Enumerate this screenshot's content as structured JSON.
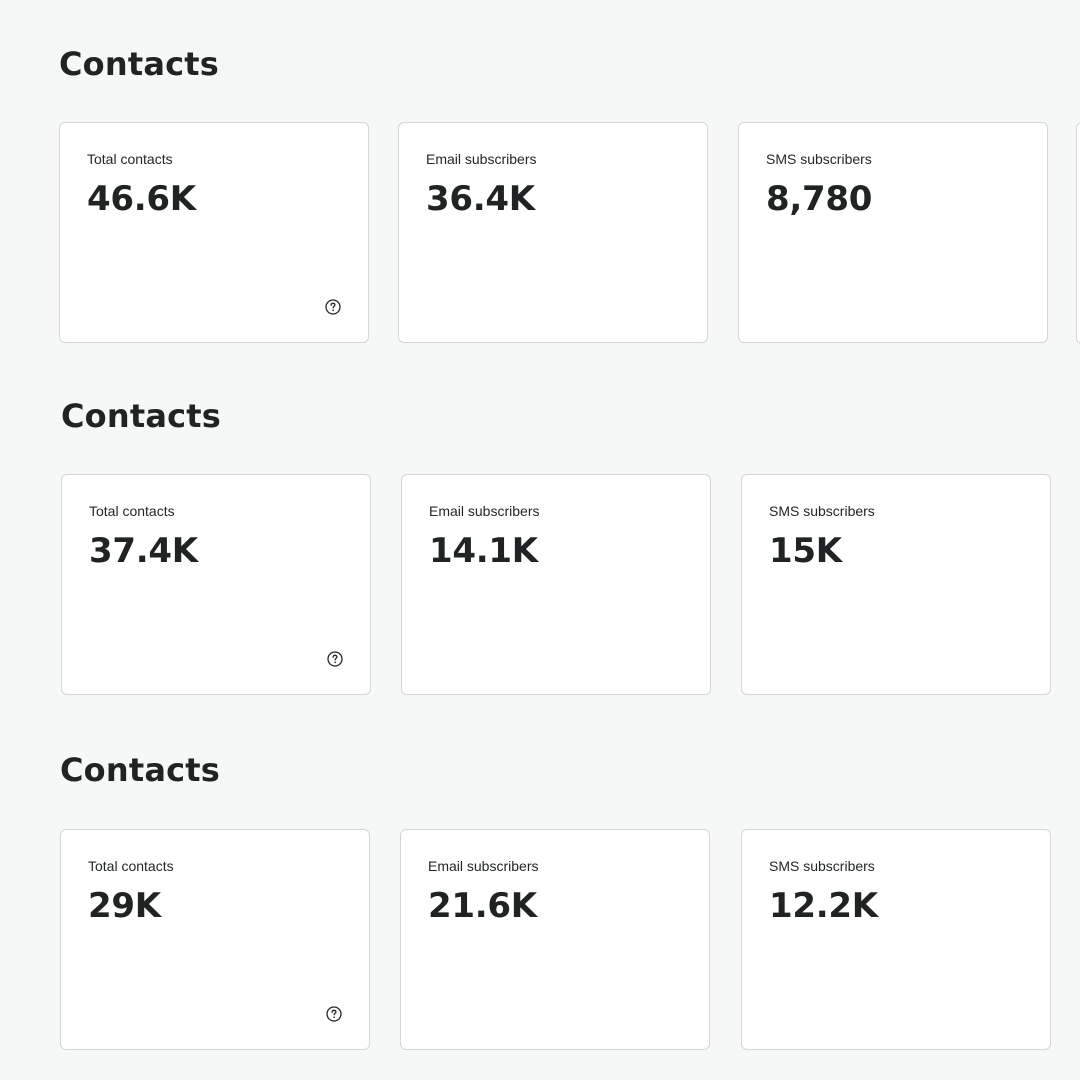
{
  "sections": [
    {
      "title": "Contacts",
      "cards": [
        {
          "label": "Total contacts",
          "value": "46.6K",
          "icon": "help-circle-icon"
        },
        {
          "label": "Email subscribers",
          "value": "36.4K"
        },
        {
          "label": "SMS subscribers",
          "value": "8,780"
        }
      ]
    },
    {
      "title": "Contacts",
      "cards": [
        {
          "label": "Total contacts",
          "value": "37.4K",
          "icon": "help-circle-icon"
        },
        {
          "label": "Email subscribers",
          "value": "14.1K"
        },
        {
          "label": "SMS subscribers",
          "value": "15K"
        }
      ]
    },
    {
      "title": "Contacts",
      "cards": [
        {
          "label": "Total contacts",
          "value": "29K",
          "icon": "help-circle-icon"
        },
        {
          "label": "Email subscribers",
          "value": "21.6K"
        },
        {
          "label": "SMS subscribers",
          "value": "12.2K"
        }
      ]
    }
  ],
  "colors": {
    "page_background": "#f6f7f7",
    "card_background": "#ffffff",
    "card_border": "#d3d7d8",
    "text_primary": "#1f2324"
  }
}
